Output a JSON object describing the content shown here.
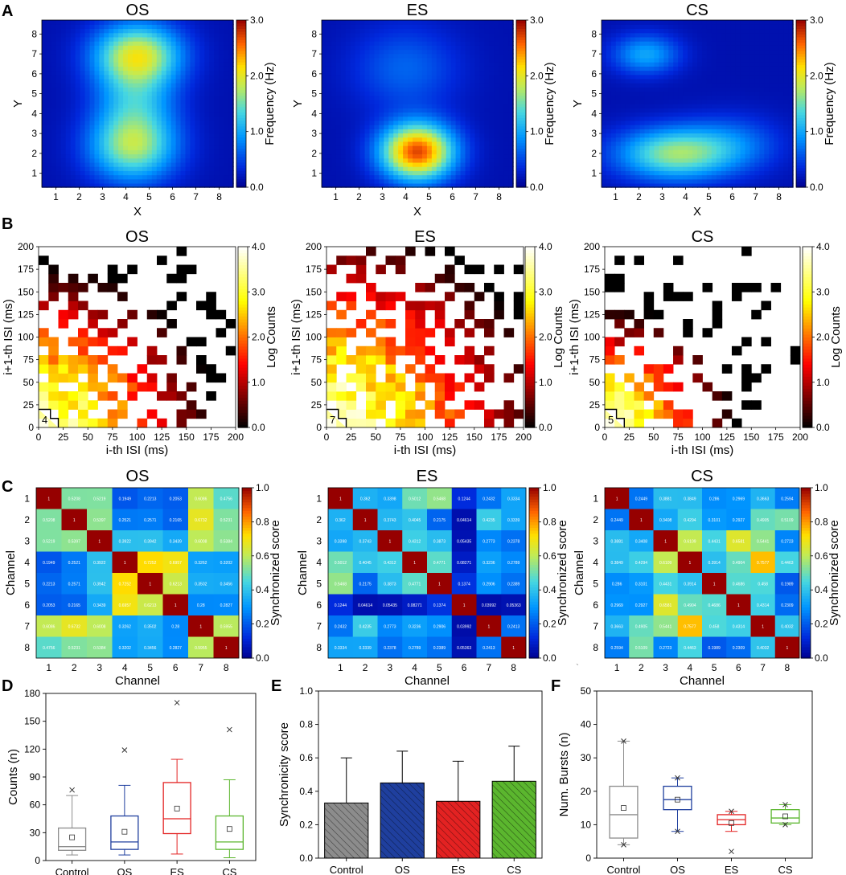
{
  "panel_letters": [
    "A",
    "B",
    "C",
    "D",
    "E",
    "F"
  ],
  "stray_mark": "`",
  "chart_data": [
    {
      "panel": "A",
      "type": "heatmap",
      "kind": "contour",
      "titles": [
        "OS",
        "ES",
        "CS"
      ],
      "xlabel": "X",
      "ylabel": "Y",
      "x_ticks": [
        1,
        2,
        3,
        4,
        5,
        6,
        7,
        8
      ],
      "y_ticks": [
        1,
        2,
        3,
        4,
        5,
        6,
        7,
        8
      ],
      "xlim": [
        0.4,
        8.6
      ],
      "ylim": [
        0.3,
        8.7
      ],
      "colorbar": {
        "label": "Frequency (Hz)",
        "range": [
          0,
          3
        ],
        "ticks": [
          "0.0",
          "1.0",
          "2.0",
          "3.0"
        ]
      },
      "maps": [
        {
          "name": "OS",
          "peaks": [
            {
              "x": 4.5,
              "y": 7.0,
              "amp": 1.75,
              "sx": 1.3,
              "sy": 1.1
            },
            {
              "x": 4.3,
              "y": 2.3,
              "amp": 1.45,
              "sx": 1.3,
              "sy": 1.2
            },
            {
              "x": 4.4,
              "y": 4.6,
              "amp": 0.85,
              "sx": 1.2,
              "sy": 1.4
            }
          ]
        },
        {
          "name": "ES",
          "peaks": [
            {
              "x": 4.5,
              "y": 2.1,
              "amp": 2.55,
              "sx": 1.1,
              "sy": 1.0
            },
            {
              "x": 4.0,
              "y": 6.3,
              "amp": 0.5,
              "sx": 1.6,
              "sy": 1.5
            }
          ]
        },
        {
          "name": "CS",
          "peaks": [
            {
              "x": 3.5,
              "y": 2.0,
              "amp": 1.45,
              "sx": 1.7,
              "sy": 0.9
            },
            {
              "x": 2.3,
              "y": 7.0,
              "amp": 0.85,
              "sx": 1.0,
              "sy": 0.7
            },
            {
              "x": 6.0,
              "y": 2.5,
              "amp": 0.5,
              "sx": 1.5,
              "sy": 1.0
            }
          ]
        }
      ]
    },
    {
      "panel": "B",
      "type": "heatmap",
      "kind": "isi-return-map",
      "titles": [
        "OS",
        "ES",
        "CS"
      ],
      "xlabel": "i-th ISI (ms)",
      "ylabel": "i+1-th ISI (ms)",
      "x_ticks": [
        0,
        25,
        50,
        75,
        100,
        125,
        150,
        175,
        200
      ],
      "y_ticks": [
        0,
        25,
        50,
        75,
        100,
        125,
        150,
        175,
        200
      ],
      "colorbar": {
        "label": "Log Counts",
        "range": [
          0,
          4
        ],
        "ticks": [
          "0.0",
          "1.0",
          "2.0",
          "3.0",
          "4.0"
        ]
      },
      "corner_labels": [
        "4",
        "7",
        "5"
      ]
    },
    {
      "panel": "C",
      "type": "heatmap",
      "kind": "correlation-matrix",
      "titles": [
        "OS",
        "ES",
        "CS"
      ],
      "xlabel": "Channel",
      "ylabel": "Channel",
      "ticks": [
        1,
        2,
        3,
        4,
        5,
        6,
        7,
        8
      ],
      "colorbar": {
        "label": "Synchronized score",
        "range": [
          0,
          1
        ],
        "ticks": [
          "0.0",
          "0.2",
          "0.4",
          "0.6",
          "0.8",
          "1.0"
        ]
      },
      "matrices": [
        [
          [
            1,
            0.5208,
            0.5219,
            0.1949,
            0.2213,
            0.2053,
            0.6086,
            0.4756
          ],
          [
            0.5208,
            1,
            0.5397,
            0.2521,
            0.2571,
            0.2165,
            0.6732,
            0.5231
          ],
          [
            0.5219,
            0.5397,
            1,
            0.3922,
            0.3942,
            0.3439,
            0.6008,
            0.5384
          ],
          [
            0.1949,
            0.2521,
            0.3922,
            1,
            0.7252,
            0.6957,
            0.3262,
            0.3202
          ],
          [
            0.2213,
            0.2571,
            0.3942,
            0.7252,
            1,
            0.6213,
            0.3502,
            0.3456
          ],
          [
            0.2053,
            0.2165,
            0.3439,
            0.6957,
            0.6213,
            1,
            0.28,
            0.2827
          ],
          [
            0.6086,
            0.6732,
            0.6008,
            0.3262,
            0.3502,
            0.28,
            1,
            0.5955
          ],
          [
            0.4756,
            0.5231,
            0.5384,
            0.3202,
            0.3456,
            0.2827,
            0.5955,
            1
          ]
        ],
        [
          [
            1,
            0.362,
            0.3398,
            0.5012,
            0.5468,
            0.1244,
            0.2432,
            0.3334
          ],
          [
            0.362,
            1,
            0.3743,
            0.4045,
            0.2175,
            0.04614,
            0.4235,
            0.3339
          ],
          [
            0.3398,
            0.3743,
            1,
            0.4312,
            0.3873,
            0.05435,
            0.2773,
            0.2378
          ],
          [
            0.5012,
            0.4045,
            0.4312,
            1,
            0.4771,
            0.08271,
            0.3236,
            0.2789
          ],
          [
            0.5468,
            0.2175,
            0.3873,
            0.4771,
            1,
            0.1374,
            0.2906,
            0.2389
          ],
          [
            0.1244,
            0.04614,
            0.05435,
            0.08271,
            0.1374,
            1,
            0.03992,
            0.05363
          ],
          [
            0.2432,
            0.4235,
            0.2773,
            0.3236,
            0.2906,
            0.03992,
            1,
            0.2413
          ],
          [
            0.3334,
            0.3339,
            0.2378,
            0.2789,
            0.2389,
            0.05363,
            0.2413,
            1
          ]
        ],
        [
          [
            1,
            0.2449,
            0.3881,
            0.3849,
            0.286,
            0.2969,
            0.3663,
            0.2594
          ],
          [
            0.2449,
            1,
            0.3408,
            0.4294,
            0.3101,
            0.2927,
            0.4905,
            0.5109
          ],
          [
            0.3881,
            0.3408,
            1,
            0.6109,
            0.4431,
            0.6581,
            0.5441,
            0.2723
          ],
          [
            0.3849,
            0.4294,
            0.6109,
            1,
            0.3914,
            0.4904,
            0.7577,
            0.4463
          ],
          [
            0.286,
            0.3101,
            0.4431,
            0.3914,
            1,
            0.4686,
            0.458,
            0.1989
          ],
          [
            0.2969,
            0.2927,
            0.6581,
            0.4904,
            0.4686,
            1,
            0.4314,
            0.2309
          ],
          [
            0.3663,
            0.4905,
            0.5441,
            0.7577,
            0.458,
            0.4314,
            1,
            0.4032
          ],
          [
            0.2594,
            0.5109,
            0.2723,
            0.4463,
            0.1989,
            0.2309,
            0.4032,
            1
          ]
        ]
      ]
    },
    {
      "panel": "D",
      "type": "box",
      "ylabel": "Counts (n)",
      "ylim": [
        0,
        180
      ],
      "y_ticks": [
        0,
        30,
        60,
        90,
        120,
        150,
        180
      ],
      "categories": [
        "Control",
        "OS",
        "ES",
        "CS"
      ],
      "colors": [
        "#8c8c8c",
        "#1f3f9e",
        "#e32222",
        "#5bb62e"
      ],
      "boxes": [
        {
          "min": 6,
          "q1": 11,
          "median": 15,
          "q3": 35,
          "max": 70,
          "mean": 25,
          "outliers": [
            76
          ]
        },
        {
          "min": 6,
          "q1": 12,
          "median": 20,
          "q3": 48,
          "max": 81,
          "mean": 31,
          "outliers": [
            119
          ]
        },
        {
          "min": 7,
          "q1": 29,
          "median": 45,
          "q3": 84,
          "max": 109,
          "mean": 56,
          "outliers": [
            170
          ]
        },
        {
          "min": 3,
          "q1": 12,
          "median": 20,
          "q3": 48,
          "max": 87,
          "mean": 34,
          "outliers": [
            141
          ]
        }
      ]
    },
    {
      "panel": "E",
      "type": "bar",
      "ylabel": "Synchronicity score",
      "ylim": [
        0,
        1
      ],
      "y_ticks": [
        "0.0",
        "0.2",
        "0.4",
        "0.6",
        "0.8",
        "1.0"
      ],
      "categories": [
        "Control",
        "OS",
        "ES",
        "CS"
      ],
      "values": [
        0.33,
        0.45,
        0.34,
        0.46
      ],
      "errors": [
        0.27,
        0.19,
        0.24,
        0.21
      ],
      "colors": [
        "#8c8c8c",
        "#1f3f9e",
        "#e32222",
        "#5bb62e"
      ]
    },
    {
      "panel": "F",
      "type": "box",
      "ylabel": "Num. Bursts (n)",
      "ylim": [
        0,
        50
      ],
      "y_ticks": [
        0,
        10,
        20,
        30,
        40,
        50
      ],
      "categories": [
        "Control",
        "OS",
        "ES",
        "CS"
      ],
      "colors": [
        "#8c8c8c",
        "#1f3f9e",
        "#e32222",
        "#5bb62e"
      ],
      "boxes": [
        {
          "min": 4,
          "q1": 6,
          "median": 13,
          "q3": 21.5,
          "max": 35,
          "mean": 15,
          "outliers": [
            35,
            4
          ]
        },
        {
          "min": 8,
          "q1": 14.5,
          "median": 17.5,
          "q3": 21.5,
          "max": 24,
          "mean": 17.5,
          "outliers": [
            24,
            8
          ]
        },
        {
          "min": 8,
          "q1": 10,
          "median": 11.5,
          "q3": 13,
          "max": 14,
          "mean": 10.5,
          "outliers": [
            2,
            14
          ]
        },
        {
          "min": 10,
          "q1": 10.5,
          "median": 12,
          "q3": 14.5,
          "max": 16,
          "mean": 12.5,
          "outliers": [
            16,
            10
          ]
        }
      ]
    }
  ]
}
